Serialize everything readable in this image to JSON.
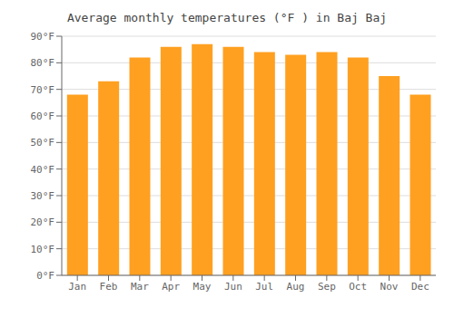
{
  "chart_data": {
    "type": "bar",
    "title": "Average monthly temperatures (°F ) in Baj Baj",
    "categories": [
      "Jan",
      "Feb",
      "Mar",
      "Apr",
      "May",
      "Jun",
      "Jul",
      "Aug",
      "Sep",
      "Oct",
      "Nov",
      "Dec"
    ],
    "values": [
      68,
      73,
      82,
      86,
      87,
      86,
      84,
      83,
      84,
      82,
      75,
      68
    ],
    "color": "#FFA020",
    "ylim": [
      0,
      90
    ],
    "yticks": [
      {
        "value": 0,
        "label": "0°F"
      },
      {
        "value": 10,
        "label": "10°F"
      },
      {
        "value": 20,
        "label": "20°F"
      },
      {
        "value": 30,
        "label": "30°F"
      },
      {
        "value": 40,
        "label": "40°F"
      },
      {
        "value": 50,
        "label": "50°F"
      },
      {
        "value": 60,
        "label": "60°F"
      },
      {
        "value": 70,
        "label": "70°F"
      },
      {
        "value": 80,
        "label": "80°F"
      },
      {
        "value": 90,
        "label": "90°F"
      }
    ],
    "grid": true
  }
}
